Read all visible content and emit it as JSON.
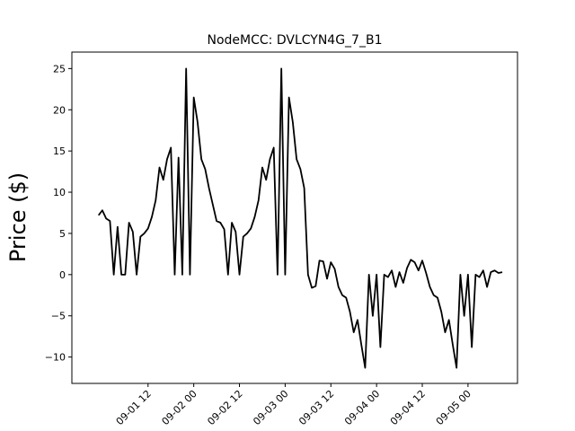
{
  "chart_data": {
    "type": "line",
    "title": "NodeMCC: DVLCYN4G_7_B1",
    "xlabel": "",
    "ylabel": "Price ($)",
    "xlim": [
      "2022-08-31T16:00",
      "2022-09-05T13:00"
    ],
    "ylim": [
      -13.2,
      27
    ],
    "grid": false,
    "x_ticks": [
      {
        "x": "2022-09-01T12:00",
        "label": "09-01 12"
      },
      {
        "x": "2022-09-02T00:00",
        "label": "09-02 00"
      },
      {
        "x": "2022-09-02T12:00",
        "label": "09-02 12"
      },
      {
        "x": "2022-09-03T00:00",
        "label": "09-03 00"
      },
      {
        "x": "2022-09-03T12:00",
        "label": "09-03 12"
      },
      {
        "x": "2022-09-04T00:00",
        "label": "09-04 00"
      },
      {
        "x": "2022-09-04T12:00",
        "label": "09-04 12"
      },
      {
        "x": "2022-09-05T00:00",
        "label": "09-05 00"
      }
    ],
    "y_ticks": [
      {
        "y": 25,
        "label": "25"
      },
      {
        "y": 20,
        "label": "20"
      },
      {
        "y": 15,
        "label": "15"
      },
      {
        "y": 10,
        "label": "10"
      },
      {
        "y": 5,
        "label": "5"
      },
      {
        "y": 0,
        "label": "0"
      },
      {
        "y": -5,
        "label": "−5"
      },
      {
        "y": -10,
        "label": "−10"
      }
    ],
    "series": [
      {
        "color": "#000000",
        "x": [
          "2022-08-31T23:00",
          "2022-09-01T00:00",
          "2022-09-01T01:00",
          "2022-09-01T02:00",
          "2022-09-01T03:00",
          "2022-09-01T04:00",
          "2022-09-01T05:00",
          "2022-09-01T06:00",
          "2022-09-01T07:00",
          "2022-09-01T08:00",
          "2022-09-01T09:00",
          "2022-09-01T10:00",
          "2022-09-01T11:00",
          "2022-09-01T12:00",
          "2022-09-01T13:00",
          "2022-09-01T14:00",
          "2022-09-01T15:00",
          "2022-09-01T16:00",
          "2022-09-01T17:00",
          "2022-09-01T18:00",
          "2022-09-01T19:00",
          "2022-09-01T20:00",
          "2022-09-01T21:00",
          "2022-09-01T22:00",
          "2022-09-01T23:00",
          "2022-09-02T00:00",
          "2022-09-02T01:00",
          "2022-09-02T02:00",
          "2022-09-02T03:00",
          "2022-09-02T04:00",
          "2022-09-02T05:00",
          "2022-09-02T06:00",
          "2022-09-02T07:00",
          "2022-09-02T08:00",
          "2022-09-02T09:00",
          "2022-09-02T10:00",
          "2022-09-02T11:00",
          "2022-09-02T12:00",
          "2022-09-02T13:00",
          "2022-09-02T14:00",
          "2022-09-02T15:00",
          "2022-09-02T16:00",
          "2022-09-02T17:00",
          "2022-09-02T18:00",
          "2022-09-02T19:00",
          "2022-09-02T20:00",
          "2022-09-02T21:00",
          "2022-09-02T22:00",
          "2022-09-02T23:00",
          "2022-09-03T00:00",
          "2022-09-03T01:00",
          "2022-09-03T02:00",
          "2022-09-03T03:00",
          "2022-09-03T04:00",
          "2022-09-03T05:00",
          "2022-09-03T06:00",
          "2022-09-03T07:00",
          "2022-09-03T08:00",
          "2022-09-03T09:00",
          "2022-09-03T10:00",
          "2022-09-03T11:00",
          "2022-09-03T12:00",
          "2022-09-03T13:00",
          "2022-09-03T14:00",
          "2022-09-03T15:00",
          "2022-09-03T16:00",
          "2022-09-03T17:00",
          "2022-09-03T18:00",
          "2022-09-03T19:00",
          "2022-09-03T20:00",
          "2022-09-03T21:00",
          "2022-09-03T22:00",
          "2022-09-03T23:00",
          "2022-09-04T00:00",
          "2022-09-04T01:00",
          "2022-09-04T02:00",
          "2022-09-04T03:00",
          "2022-09-04T04:00",
          "2022-09-04T05:00",
          "2022-09-04T06:00",
          "2022-09-04T07:00",
          "2022-09-04T08:00",
          "2022-09-04T09:00",
          "2022-09-04T10:00",
          "2022-09-04T11:00",
          "2022-09-04T12:00",
          "2022-09-04T13:00",
          "2022-09-04T14:00",
          "2022-09-04T15:00",
          "2022-09-04T16:00",
          "2022-09-04T17:00",
          "2022-09-04T18:00",
          "2022-09-04T19:00",
          "2022-09-04T20:00",
          "2022-09-04T21:00",
          "2022-09-04T22:00",
          "2022-09-04T23:00",
          "2022-09-05T00:00",
          "2022-09-05T01:00",
          "2022-09-05T02:00",
          "2022-09-05T03:00",
          "2022-09-05T04:00",
          "2022-09-05T05:00",
          "2022-09-05T06:00",
          "2022-09-05T07:00",
          "2022-09-05T08:00",
          "2022-09-05T09:00"
        ],
        "y": [
          7.2,
          7.8,
          6.8,
          6.5,
          0,
          5.8,
          0,
          0,
          6.3,
          5.2,
          0,
          4.6,
          5.0,
          5.6,
          7.0,
          9.0,
          13.0,
          11.5,
          14.0,
          15.4,
          0,
          14.2,
          0,
          25.0,
          0,
          21.5,
          18.5,
          14.0,
          12.8,
          10.5,
          8.5,
          6.5,
          6.3,
          5.5,
          0,
          6.3,
          5.2,
          0,
          4.6,
          5.0,
          5.6,
          7.0,
          9.0,
          13.0,
          11.5,
          14.0,
          15.4,
          0,
          25.0,
          0,
          21.5,
          18.5,
          14.0,
          12.8,
          10.5,
          0,
          -1.6,
          -1.4,
          1.7,
          1.6,
          -0.5,
          1.5,
          0.7,
          -1.5,
          -2.5,
          -2.8,
          -4.5,
          -7.0,
          -5.5,
          -8.5,
          -11.3,
          0,
          -5.0,
          0,
          -8.8,
          0,
          -0.3,
          0.5,
          -1.5,
          0.3,
          -1.0,
          0.8,
          1.8,
          1.5,
          0.5,
          1.7,
          0.2,
          -1.5,
          -2.5,
          -2.8,
          -4.5,
          -7.0,
          -5.5,
          -8.5,
          -11.3,
          0,
          -5.0,
          0,
          -8.8,
          0,
          -0.3,
          0.5,
          -1.5,
          0.3,
          0.5,
          0.2,
          0.3
        ]
      }
    ]
  }
}
